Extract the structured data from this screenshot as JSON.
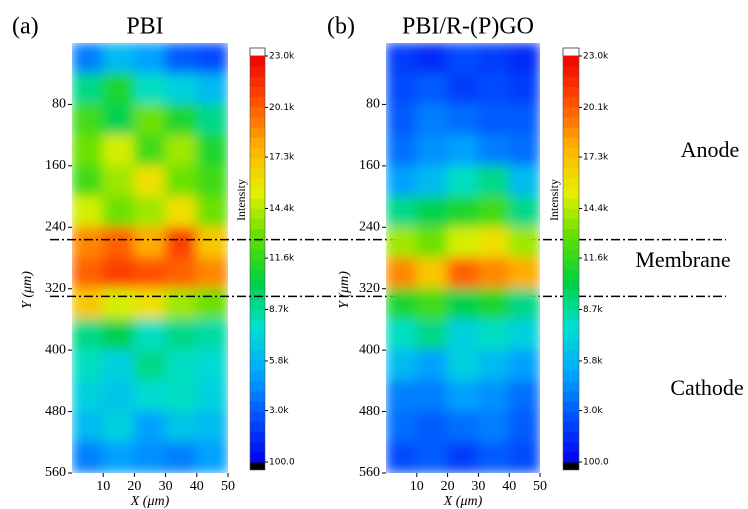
{
  "chart_data": [
    {
      "type": "heatmap",
      "panel_label": "(a)",
      "title": "PBI",
      "x_label": "X (μm)",
      "y_label": "Y (μm)",
      "xlim": [
        0,
        50
      ],
      "xticks": [
        10,
        20,
        30,
        40,
        50
      ],
      "ylim": [
        0,
        560
      ],
      "yticks": [
        80,
        160,
        240,
        320,
        400,
        480,
        560
      ],
      "y_inverted": true,
      "colorbar_label": "Intensity",
      "zlim": [
        100,
        23000
      ],
      "colorbar_ticks": [
        {
          "value": 100,
          "label": "100.0"
        },
        {
          "value": 3000,
          "label": "3.0k"
        },
        {
          "value": 5800,
          "label": "5.8k"
        },
        {
          "value": 8700,
          "label": "8.7k"
        },
        {
          "value": 11600,
          "label": "11.6k"
        },
        {
          "value": 14400,
          "label": "14.4k"
        },
        {
          "value": 17300,
          "label": "17.3k"
        },
        {
          "value": 20100,
          "label": "20.1k"
        },
        {
          "value": 23000,
          "label": "23.0k"
        }
      ],
      "colormap": [
        "#0000f0",
        "#0050ff",
        "#00a8ff",
        "#00e0d0",
        "#00d040",
        "#60e000",
        "#e8f000",
        "#ffb000",
        "#ff5000",
        "#f00000"
      ],
      "hlines": [
        256,
        330
      ],
      "z": [
        [
          4000,
          6000,
          5000,
          3000,
          2500
        ],
        [
          9000,
          11000,
          8000,
          7000,
          6000
        ],
        [
          12000,
          10000,
          13000,
          11000,
          9000
        ],
        [
          13000,
          15000,
          12000,
          14000,
          11000
        ],
        [
          12000,
          14000,
          16000,
          13000,
          12000
        ],
        [
          15000,
          13000,
          14000,
          16000,
          13000
        ],
        [
          19000,
          20000,
          18000,
          21000,
          17000
        ],
        [
          20000,
          21000,
          20500,
          20000,
          19000
        ],
        [
          17000,
          15000,
          16000,
          14000,
          13000
        ],
        [
          9000,
          10000,
          8000,
          9000,
          8500
        ],
        [
          8000,
          7000,
          9000,
          8000,
          7500
        ],
        [
          7000,
          6500,
          7500,
          8000,
          7000
        ],
        [
          6000,
          7000,
          5000,
          6500,
          6000
        ],
        [
          4000,
          5000,
          4500,
          4000,
          5000
        ]
      ]
    },
    {
      "type": "heatmap",
      "panel_label": "(b)",
      "title": "PBI/R-(P)GO",
      "x_label": "X (μm)",
      "y_label": "Y (μm)",
      "xlim": [
        0,
        50
      ],
      "xticks": [
        10,
        20,
        30,
        40,
        50
      ],
      "ylim": [
        0,
        560
      ],
      "yticks": [
        80,
        160,
        240,
        320,
        400,
        480,
        560
      ],
      "y_inverted": true,
      "colorbar_label": "Intensity",
      "zlim": [
        100,
        23000
      ],
      "colorbar_ticks": [
        {
          "value": 100,
          "label": "100.0"
        },
        {
          "value": 3000,
          "label": "3.0k"
        },
        {
          "value": 5800,
          "label": "5.8k"
        },
        {
          "value": 8700,
          "label": "8.7k"
        },
        {
          "value": 11600,
          "label": "11.6k"
        },
        {
          "value": 14400,
          "label": "14.4k"
        },
        {
          "value": 17300,
          "label": "17.3k"
        },
        {
          "value": 20100,
          "label": "20.1k"
        },
        {
          "value": 23000,
          "label": "23.0k"
        }
      ],
      "colormap": [
        "#0000f0",
        "#0050ff",
        "#00a8ff",
        "#00e0d0",
        "#00d040",
        "#60e000",
        "#e8f000",
        "#ffb000",
        "#ff5000",
        "#f00000"
      ],
      "annotations": [
        "Anode",
        "Membrane",
        "Cathode"
      ],
      "z": [
        [
          2000,
          1500,
          2500,
          2000,
          1500
        ],
        [
          2500,
          3000,
          2000,
          2500,
          2000
        ],
        [
          3000,
          4000,
          3500,
          3000,
          3000
        ],
        [
          3500,
          4500,
          5000,
          4000,
          3500
        ],
        [
          5000,
          6000,
          8000,
          9000,
          6000
        ],
        [
          9000,
          10000,
          11000,
          12000,
          9000
        ],
        [
          14000,
          13000,
          15000,
          16000,
          14000
        ],
        [
          19000,
          17000,
          20000,
          19000,
          18000
        ],
        [
          11000,
          12000,
          10000,
          11000,
          9000
        ],
        [
          8000,
          9000,
          7000,
          8000,
          7000
        ],
        [
          6000,
          5000,
          7000,
          6000,
          5000
        ],
        [
          4000,
          4000,
          5000,
          4500,
          3500
        ],
        [
          3500,
          3000,
          3500,
          4000,
          3000
        ],
        [
          2500,
          3000,
          2000,
          3000,
          2500
        ]
      ]
    }
  ]
}
